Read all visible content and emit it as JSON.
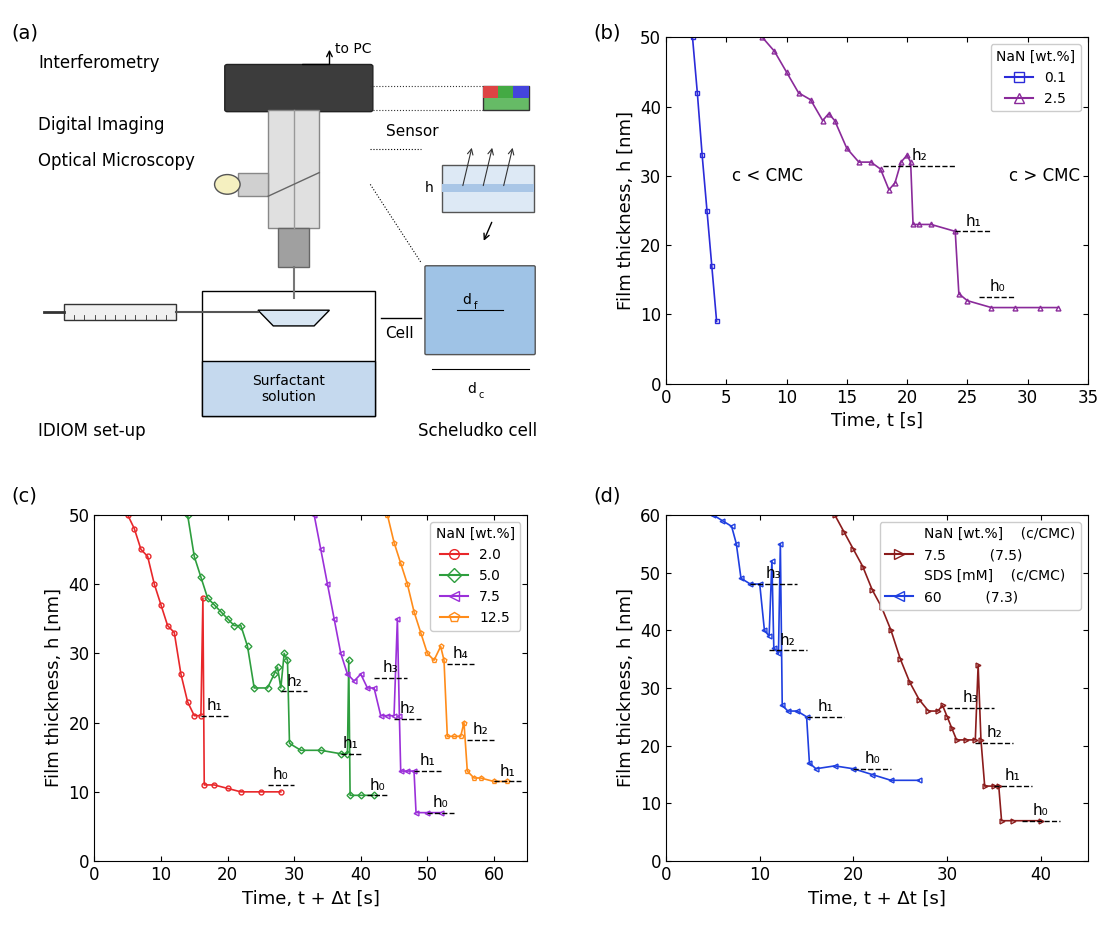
{
  "diagram": {
    "panel": "(a)",
    "texts": {
      "interferometry": "Interferometry",
      "to_pc": "to PC",
      "sensor": "Sensor",
      "digital_imaging": "Digital Imaging",
      "optical_microscopy": "Optical Microscopy",
      "cell": "Cell",
      "solution": "Surfactant\nsolution",
      "setup": "IDIOM set-up",
      "scheludko": "Scheludko cell",
      "h": "h",
      "d_f": {
        "base": "d",
        "sub": "f"
      },
      "d_c": {
        "base": "d",
        "sub": "c"
      }
    }
  },
  "chart_data": [
    {
      "type": "line",
      "panel": "(b)",
      "x_label": "Time, t [s]",
      "y_label": "Film thickness, h [nm]",
      "xlim": [
        0,
        35
      ],
      "xticks": [
        0,
        5,
        10,
        15,
        20,
        25,
        30,
        35
      ],
      "ylim": [
        0,
        50
      ],
      "yticks": [
        0,
        10,
        20,
        30,
        40,
        50
      ],
      "legend": "upper right",
      "legend_title": "NaN [wt.%]",
      "series": [
        {
          "name": "0.1",
          "color": "#2b2bd9",
          "marker": "square",
          "line_style": "solid",
          "x": [
            2.2,
            2.6,
            3.0,
            3.4,
            3.8,
            4.2
          ],
          "values": [
            50,
            42,
            33,
            25,
            17,
            9
          ]
        },
        {
          "name": "2.5",
          "color": "#8a2a9a",
          "marker": "triangle_up",
          "line_style": "solid",
          "x": [
            8,
            9,
            10,
            11,
            12,
            13,
            13.5,
            14,
            15,
            16,
            17,
            17.8,
            18.5,
            19,
            19.5,
            20,
            20.3,
            20.5,
            21,
            22,
            24,
            24.3,
            25,
            27,
            29,
            31,
            32.5
          ],
          "values": [
            50,
            48,
            45,
            42,
            41,
            38,
            39,
            38,
            34,
            32,
            32,
            31,
            28,
            29,
            32,
            33,
            32,
            23,
            23,
            23,
            22,
            13,
            12,
            11,
            11,
            11,
            11
          ]
        }
      ],
      "levels": [
        {
          "label": "h₂",
          "value": 31.5,
          "x": [
            18,
            24
          ]
        },
        {
          "label": "h₁",
          "value": 22,
          "x": [
            24,
            27
          ]
        },
        {
          "label": "h₀",
          "value": 12.5,
          "x": [
            26,
            29
          ]
        }
      ],
      "annotations": [
        {
          "text": "c < CMC",
          "x": 5.5,
          "y": 30
        },
        {
          "text": "c > CMC",
          "x": 28.5,
          "y": 30
        }
      ]
    },
    {
      "type": "line",
      "panel": "(c)",
      "x_label": "Time, t + Δt [s]",
      "y_label": "Film thickness, h [nm]",
      "xlim": [
        0,
        65
      ],
      "xticks": [
        0,
        10,
        20,
        30,
        40,
        50,
        60
      ],
      "ylim": [
        0,
        50
      ],
      "yticks": [
        0,
        10,
        20,
        30,
        40,
        50
      ],
      "legend": "upper right",
      "legend_title": "NaN [wt.%]",
      "series": [
        {
          "name": "2.0",
          "color": "#e8272a",
          "marker": "circle",
          "line_style": "solid",
          "x": [
            5,
            6,
            7,
            8,
            9,
            10,
            11,
            12,
            13,
            14,
            15,
            16,
            16.3,
            16.5,
            18,
            20,
            22,
            25,
            28
          ],
          "values": [
            50,
            48,
            45,
            44,
            40,
            37,
            34,
            33,
            27,
            23,
            21,
            21,
            38,
            11,
            11,
            10.5,
            10,
            10,
            10
          ]
        },
        {
          "name": "5.0",
          "color": "#2e9e3e",
          "marker": "diamond",
          "line_style": "solid",
          "x": [
            14,
            15,
            16,
            17,
            18,
            19,
            20,
            21,
            22,
            23,
            24,
            26,
            27,
            27.5,
            28,
            28.5,
            29,
            29.3,
            31,
            34,
            37,
            38,
            38.2,
            38.4,
            40,
            42
          ],
          "values": [
            50,
            44,
            41,
            38,
            37,
            36,
            35,
            34,
            34,
            31,
            25,
            25,
            27,
            28,
            25,
            30,
            29,
            17,
            16,
            16,
            15.5,
            15.5,
            29,
            9.5,
            9.5,
            9.5
          ]
        },
        {
          "name": "7.5",
          "color": "#9b30d9",
          "marker": "triangle_left",
          "line_style": "solid",
          "x": [
            33,
            34,
            35,
            36,
            37,
            38,
            39,
            40,
            41,
            42,
            43,
            44,
            45,
            45.5,
            45.8,
            46,
            47,
            48,
            48.3,
            50,
            52
          ],
          "values": [
            50,
            45,
            40,
            35,
            30,
            27,
            26,
            27,
            25,
            25,
            21,
            21,
            21,
            35,
            21,
            13,
            13,
            13,
            7,
            7,
            7
          ]
        },
        {
          "name": "12.5",
          "color": "#ff8c1a",
          "marker": "pentagon",
          "line_style": "solid",
          "x": [
            44,
            45,
            46,
            47,
            48,
            49,
            50,
            51,
            52,
            52.5,
            53,
            54,
            55,
            55.5,
            56,
            57,
            58,
            60,
            62
          ],
          "values": [
            50,
            46,
            43,
            40,
            36,
            33,
            30,
            29,
            31,
            29,
            18,
            18,
            18,
            20,
            13,
            12,
            12,
            11.5,
            11.5
          ]
        }
      ],
      "levels": [
        {
          "label": "h₁",
          "value": 21,
          "x": [
            16,
            20
          ]
        },
        {
          "label": "h₀",
          "value": 11,
          "x": [
            26,
            30
          ]
        },
        {
          "label": "h₂",
          "value": 24.5,
          "x": [
            28,
            32
          ]
        },
        {
          "label": "h₁",
          "value": 15.5,
          "x": [
            37,
            40
          ]
        },
        {
          "label": "h₀",
          "value": 9.5,
          "x": [
            41,
            44
          ]
        },
        {
          "label": "h₃",
          "value": 26.5,
          "x": [
            42,
            47
          ]
        },
        {
          "label": "h₂",
          "value": 20.5,
          "x": [
            45,
            49
          ]
        },
        {
          "label": "h₁",
          "value": 13,
          "x": [
            48,
            52
          ]
        },
        {
          "label": "h₀",
          "value": 7,
          "x": [
            50,
            54
          ]
        },
        {
          "label": "h₄",
          "value": 28.5,
          "x": [
            53,
            57
          ]
        },
        {
          "label": "h₂",
          "value": 17.5,
          "x": [
            56,
            60
          ]
        },
        {
          "label": "h₁",
          "value": 11.5,
          "x": [
            60,
            64
          ]
        }
      ],
      "annotations": []
    },
    {
      "type": "line",
      "panel": "(d)",
      "x_label": "Time, t + Δt [s]",
      "y_label": "Film thickness, h [nm]",
      "xlim": [
        0,
        45
      ],
      "xticks": [
        0,
        10,
        20,
        30,
        40
      ],
      "ylim": [
        0,
        60
      ],
      "yticks": [
        0,
        10,
        20,
        30,
        40,
        50,
        60
      ],
      "legend": "upper right",
      "series": [
        {
          "name": "7.5",
          "ratio": "(7.5)",
          "legend_header": "NaN [wt.%]",
          "header_ratio": "(c/CMC)",
          "color": "#8b1c1c",
          "marker": "triangle_right",
          "line_style": "solid",
          "x": [
            18,
            19,
            20,
            21,
            22,
            23,
            24,
            25,
            26,
            27,
            28,
            29,
            29.5,
            30,
            30.5,
            31,
            32,
            33,
            33.3,
            33.6,
            34,
            35,
            35.5,
            35.8,
            37,
            40
          ],
          "values": [
            60,
            57,
            54,
            51,
            47,
            44,
            40,
            35,
            31,
            28,
            26,
            26,
            27,
            25,
            23,
            21,
            21,
            21,
            34,
            21,
            13,
            13,
            13,
            7,
            7,
            7
          ]
        },
        {
          "name": "60",
          "ratio": "(7.3)",
          "legend_header": "SDS [mM]",
          "header_ratio": "(c/CMC)",
          "color": "#1f3fe0",
          "marker": "triangle_left",
          "line_style": "solid",
          "x": [
            5,
            6,
            7,
            7.5,
            8,
            9,
            10,
            10.5,
            11,
            11.3,
            11.5,
            12,
            12.2,
            12.4,
            13,
            14,
            15,
            15.3,
            16,
            18,
            20,
            22,
            24,
            27
          ],
          "values": [
            60,
            59,
            58,
            55,
            49,
            48,
            48,
            40,
            39,
            52,
            37,
            36,
            55,
            27,
            26,
            26,
            25,
            17,
            16,
            16.5,
            16,
            15,
            14,
            14
          ]
        }
      ],
      "levels": [
        {
          "label": "h₃",
          "value": 48,
          "x": [
            9,
            14
          ]
        },
        {
          "label": "h₂",
          "value": 36.5,
          "x": [
            11,
            15
          ]
        },
        {
          "label": "h₁",
          "value": 25,
          "x": [
            15,
            19
          ]
        },
        {
          "label": "h₀",
          "value": 16,
          "x": [
            20,
            24
          ]
        },
        {
          "label": "h₃",
          "value": 26.5,
          "x": [
            30,
            35
          ]
        },
        {
          "label": "h₂",
          "value": 20.5,
          "x": [
            33,
            37
          ]
        },
        {
          "label": "h₁",
          "value": 13,
          "x": [
            35,
            39
          ]
        },
        {
          "label": "h₀",
          "value": 7,
          "x": [
            38,
            42
          ]
        }
      ],
      "annotations": []
    }
  ]
}
